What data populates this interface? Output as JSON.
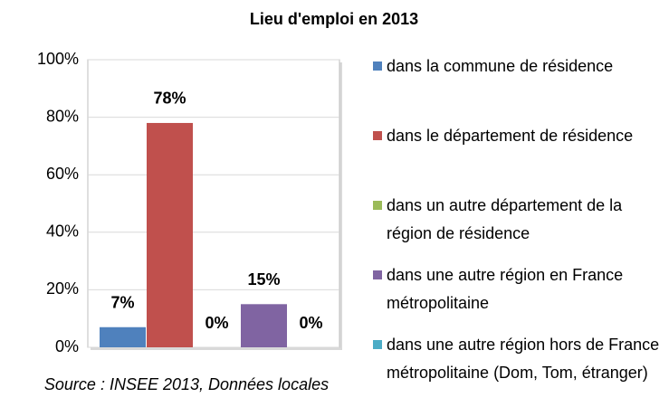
{
  "chart_data": {
    "type": "bar",
    "title": "Lieu d'emploi en 2013",
    "series": [
      {
        "name": "dans la commune de résidence",
        "color": "#4f81bd",
        "values": [
          7
        ],
        "value_labels": [
          "7%"
        ]
      },
      {
        "name": "dans le département de résidence",
        "color": "#c0504d",
        "values": [
          78
        ],
        "value_labels": [
          "78%"
        ]
      },
      {
        "name": "dans un autre département de la région de résidence",
        "color": "#9bbb59",
        "values": [
          0
        ],
        "value_labels": [
          "0%"
        ]
      },
      {
        "name": "dans une autre région en France métropolitaine",
        "color": "#8064a2",
        "values": [
          15
        ],
        "value_labels": [
          "15%"
        ]
      },
      {
        "name": "dans une autre région hors de France métropolitaine (Dom, Tom, étranger)",
        "color": "#4bacc6",
        "values": [
          0
        ],
        "value_labels": [
          "0%"
        ]
      }
    ],
    "ylim": [
      0,
      100
    ],
    "yticks": [
      {
        "value": 0,
        "label": "0%"
      },
      {
        "value": 20,
        "label": "20%"
      },
      {
        "value": 40,
        "label": "40%"
      },
      {
        "value": 60,
        "label": "60%"
      },
      {
        "value": 80,
        "label": "80%"
      },
      {
        "value": 100,
        "label": "100%"
      }
    ],
    "grid": true,
    "source": "Source : INSEE 2013, Données locales"
  }
}
